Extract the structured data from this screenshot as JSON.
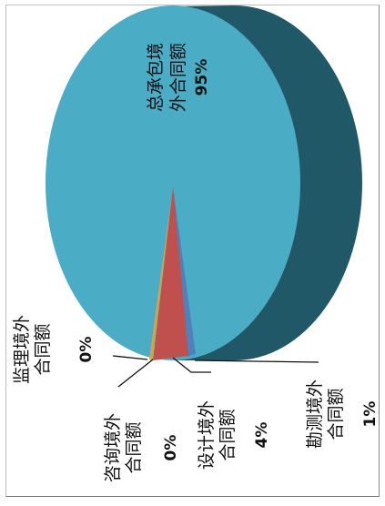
{
  "colors": {
    "main": "#4BACC6",
    "main_side": "#215867",
    "design": "#C0504D",
    "survey": "#4F81BD",
    "consult": "#9BBB59",
    "supervision": "#F79646"
  },
  "chart_data": {
    "type": "pie",
    "title": "",
    "slices": [
      {
        "label_line1": "总承包境",
        "label_line2": "外合同额",
        "value_text": "95%",
        "value": 95
      },
      {
        "label_line1": "设计境外",
        "label_line2": "合同额",
        "value_text": "4%",
        "value": 4
      },
      {
        "label_line1": "勘测境外",
        "label_line2": "合同额",
        "value_text": "1%",
        "value": 1
      },
      {
        "label_line1": "咨询境外",
        "label_line2": "合同额",
        "value_text": "0%",
        "value": 0.2
      },
      {
        "label_line1": "监理境外",
        "label_line2": "合同额",
        "value_text": "0%",
        "value": 0.1
      }
    ]
  }
}
